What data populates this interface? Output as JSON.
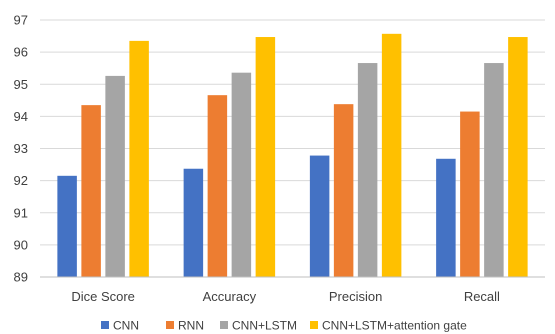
{
  "chart_data": {
    "type": "bar",
    "title": "",
    "xlabel": "",
    "ylabel": "",
    "categories": [
      "Dice Score",
      "Accuracy",
      "Precision",
      "Recall"
    ],
    "series": [
      {
        "name": "CNN",
        "color": "#4472C4",
        "values": [
          92.15,
          92.37,
          92.78,
          92.68
        ]
      },
      {
        "name": "RNN",
        "color": "#ED7D31",
        "values": [
          94.35,
          94.66,
          94.38,
          94.15
        ]
      },
      {
        "name": "CNN+LSTM",
        "color": "#A5A5A5",
        "values": [
          95.26,
          95.36,
          95.66,
          95.66
        ]
      },
      {
        "name": "CNN+LSTM+attention gate",
        "color": "#FFC000",
        "values": [
          96.35,
          96.47,
          96.57,
          96.47
        ]
      }
    ],
    "ylim": [
      89,
      97
    ],
    "yticks": [
      89,
      90,
      91,
      92,
      93,
      94,
      95,
      96,
      97
    ],
    "grid": true,
    "legend": "bottom"
  }
}
